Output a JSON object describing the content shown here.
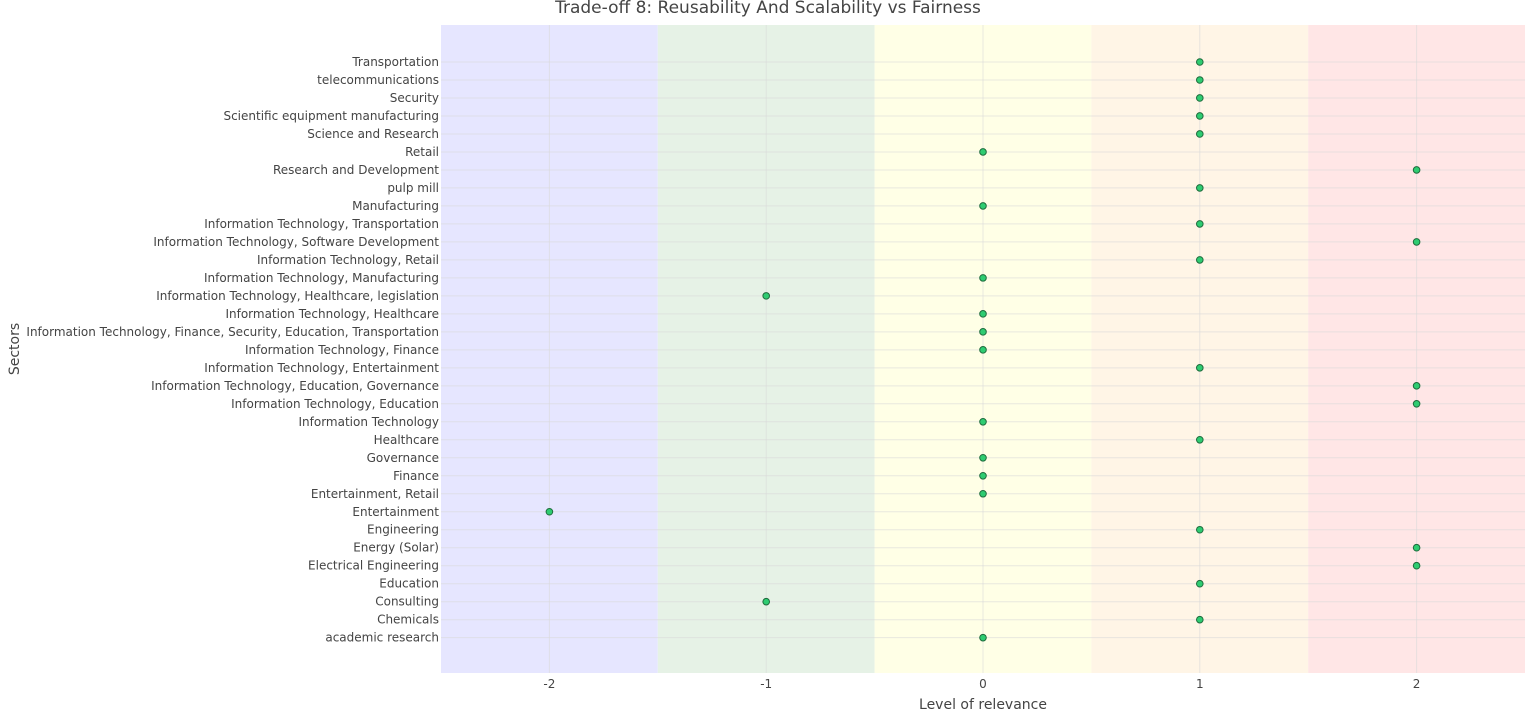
{
  "chart_data": {
    "type": "scatter",
    "title": "Trade-off 8: Reusability And Scalability vs Fairness",
    "xlabel": "Level of relevance",
    "ylabel": "Sectors",
    "xlim": [
      -2.5,
      2.5
    ],
    "x_ticks": [
      -2,
      -1,
      0,
      1,
      2
    ],
    "grid": true,
    "marker_color": "#2ecc71",
    "marker_edge_color": "#1e6b3c",
    "background_bands": [
      {
        "from": -2.5,
        "to": -1.5,
        "color": "#e6e6ff"
      },
      {
        "from": -1.5,
        "to": -0.5,
        "color": "#e6f2e6"
      },
      {
        "from": -0.5,
        "to": 0.5,
        "color": "#ffffe6"
      },
      {
        "from": 0.5,
        "to": 1.5,
        "color": "#fff5e6"
      },
      {
        "from": 1.5,
        "to": 2.5,
        "color": "#ffe6e6"
      }
    ],
    "points": [
      {
        "sector": "Transportation",
        "value": 1
      },
      {
        "sector": "telecommunications",
        "value": 1
      },
      {
        "sector": "Security",
        "value": 1
      },
      {
        "sector": "Scientific equipment manufacturing",
        "value": 1
      },
      {
        "sector": "Science and Research",
        "value": 1
      },
      {
        "sector": "Retail",
        "value": 0
      },
      {
        "sector": "Research and Development",
        "value": 2
      },
      {
        "sector": "pulp mill",
        "value": 1
      },
      {
        "sector": "Manufacturing",
        "value": 0
      },
      {
        "sector": "Information Technology, Transportation",
        "value": 1
      },
      {
        "sector": "Information Technology, Software Development",
        "value": 2
      },
      {
        "sector": "Information Technology, Retail",
        "value": 1
      },
      {
        "sector": "Information Technology, Manufacturing",
        "value": 0
      },
      {
        "sector": "Information Technology, Healthcare, legislation",
        "value": -1
      },
      {
        "sector": "Information Technology, Healthcare",
        "value": 0
      },
      {
        "sector": "Information Technology, Finance, Security, Education, Transportation",
        "value": 0
      },
      {
        "sector": "Information Technology, Finance",
        "value": 0
      },
      {
        "sector": "Information Technology, Entertainment",
        "value": 1
      },
      {
        "sector": "Information Technology, Education, Governance",
        "value": 2
      },
      {
        "sector": "Information Technology, Education",
        "value": 2
      },
      {
        "sector": "Information Technology",
        "value": 0
      },
      {
        "sector": "Healthcare",
        "value": 1
      },
      {
        "sector": "Governance",
        "value": 0
      },
      {
        "sector": "Finance",
        "value": 0
      },
      {
        "sector": "Entertainment, Retail",
        "value": 0
      },
      {
        "sector": "Entertainment",
        "value": -2
      },
      {
        "sector": "Engineering",
        "value": 1
      },
      {
        "sector": "Energy (Solar)",
        "value": 2
      },
      {
        "sector": "Electrical Engineering",
        "value": 2
      },
      {
        "sector": "Education",
        "value": 1
      },
      {
        "sector": "Consulting",
        "value": -1
      },
      {
        "sector": "Chemicals",
        "value": 1
      },
      {
        "sector": "academic research",
        "value": 0
      }
    ]
  }
}
